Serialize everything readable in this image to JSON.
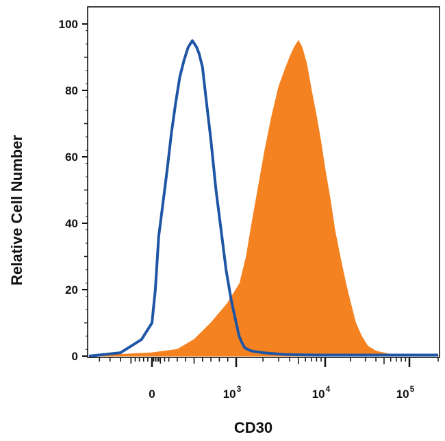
{
  "chart_data": {
    "type": "area",
    "title": "",
    "xlabel": "CD30",
    "ylabel": "Relative Cell Number",
    "x_scale": "biexponential",
    "ylim": [
      0,
      100
    ],
    "y_ticks": [
      "0",
      "20",
      "40",
      "60",
      "80",
      "100"
    ],
    "x_ticks": [
      {
        "value": 0,
        "base": "0",
        "exp": ""
      },
      {
        "value": 1000,
        "base": "10",
        "exp": "3"
      },
      {
        "value": 10000,
        "base": "10",
        "exp": "4"
      },
      {
        "value": 100000,
        "base": "10",
        "exp": "5"
      }
    ],
    "grid": false,
    "legend": "none",
    "colors": {
      "isotype": "#1f55a5",
      "stained": "#f58220",
      "axis": "#111111"
    },
    "series": [
      {
        "style": "outline",
        "color": "#1f55a5",
        "x": [
          -300,
          -150,
          -50,
          0,
          40,
          80,
          130,
          180,
          230,
          280,
          330,
          380,
          430,
          480,
          530,
          560,
          600,
          640,
          700,
          760,
          820,
          880,
          940,
          1000,
          1080,
          1160,
          1250,
          1350,
          1500,
          1700,
          2000,
          2500,
          3500,
          5000,
          8000,
          20000,
          100000,
          200000
        ],
        "y": [
          0,
          1,
          5,
          10,
          20,
          36,
          46,
          56,
          67,
          76,
          84,
          89,
          93,
          95,
          93,
          91,
          87,
          78,
          65,
          50,
          38,
          26,
          17,
          10,
          6,
          4,
          2.5,
          2,
          1.5,
          1.3,
          1,
          0.8,
          0.5,
          0.4,
          0.3,
          0.3,
          0.3,
          0.3
        ]
      },
      {
        "style": "filled",
        "color": "#f58220",
        "x": [
          -300,
          0,
          300,
          500,
          700,
          900,
          1100,
          1300,
          1500,
          1800,
          2100,
          2500,
          3000,
          3500,
          4000,
          4500,
          5000,
          5500,
          6200,
          7000,
          8000,
          9000,
          10000,
          11500,
          13000,
          15000,
          17500,
          20000,
          23000,
          27000,
          32000,
          40000,
          60000,
          200000
        ],
        "y": [
          0,
          1,
          2,
          5,
          10,
          16,
          22,
          30,
          40,
          52,
          62,
          72,
          81,
          86,
          90,
          93,
          95,
          93,
          88,
          80,
          72,
          64,
          56,
          47,
          38,
          30,
          22,
          16,
          10,
          6,
          3,
          1.5,
          0.5,
          0.2
        ]
      }
    ]
  }
}
